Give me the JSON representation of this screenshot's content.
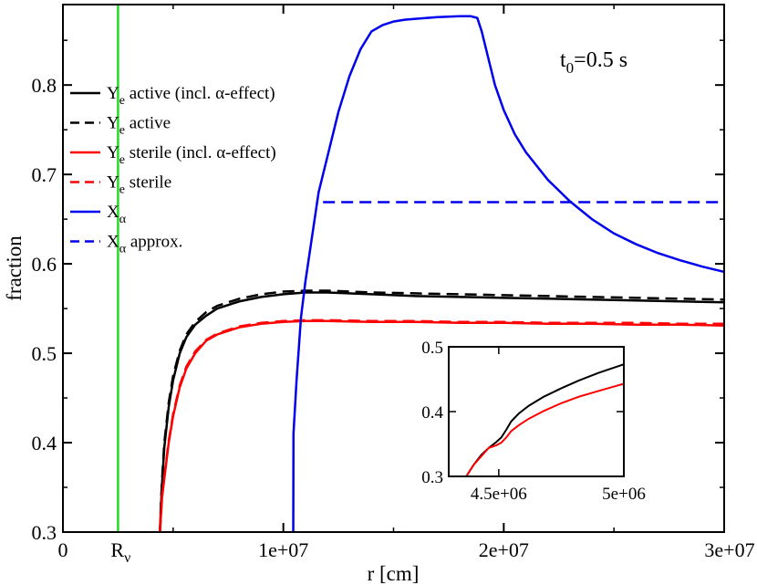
{
  "chart_data": {
    "type": "line",
    "xlabel": "r [cm]",
    "ylabel": "fraction",
    "xlim": [
      0,
      30000000
    ],
    "ylim": [
      0.3,
      0.89
    ],
    "x_ticks": [
      {
        "value": 0,
        "label": "0"
      },
      {
        "value": 10000000,
        "label": "1e+07"
      },
      {
        "value": 20000000,
        "label": "2e+07"
      },
      {
        "value": 30000000,
        "label": "3e+07"
      }
    ],
    "extra_x_tick": {
      "value": 2500000,
      "label_main": "R",
      "label_sub": "ν"
    },
    "y_ticks": [
      {
        "value": 0.3,
        "label": "0.3"
      },
      {
        "value": 0.4,
        "label": "0.4"
      },
      {
        "value": 0.5,
        "label": "0.5"
      },
      {
        "value": 0.6,
        "label": "0.6"
      },
      {
        "value": 0.7,
        "label": "0.7"
      },
      {
        "value": 0.8,
        "label": "0.8"
      }
    ],
    "annotation": {
      "main": "t",
      "sub": "0",
      "rest": "=0.5 s"
    },
    "vertical_marker": {
      "x": 2500000,
      "color": "#22dd22"
    },
    "series": [
      {
        "name": "active (incl. α-effect)",
        "symbol": "Y",
        "sub": "e",
        "color": "#000000",
        "dash": "solid",
        "x": [
          4400000,
          4450000,
          4500000,
          4600000,
          4800000,
          5000000,
          5300000,
          5600000,
          6000000,
          6500000,
          7000000,
          8000000,
          9000000,
          10000000,
          11000000,
          12000000,
          14000000,
          16000000,
          18000000,
          20000000,
          22000000,
          24000000,
          26000000,
          28000000,
          30000000
        ],
        "y": [
          0.3,
          0.33,
          0.355,
          0.395,
          0.44,
          0.47,
          0.5,
          0.518,
          0.532,
          0.542,
          0.55,
          0.558,
          0.563,
          0.566,
          0.568,
          0.568,
          0.566,
          0.564,
          0.563,
          0.562,
          0.561,
          0.56,
          0.559,
          0.558,
          0.557
        ]
      },
      {
        "name": "active",
        "symbol": "Y",
        "sub": "e",
        "color": "#000000",
        "dash": "dashed",
        "x": [
          4400000,
          4450000,
          4500000,
          4600000,
          4800000,
          5000000,
          5300000,
          5600000,
          6000000,
          6500000,
          7000000,
          8000000,
          9000000,
          10000000,
          11000000,
          12000000,
          14000000,
          16000000,
          18000000,
          20000000,
          22000000,
          24000000,
          26000000,
          28000000,
          30000000
        ],
        "y": [
          0.3,
          0.335,
          0.36,
          0.4,
          0.445,
          0.475,
          0.503,
          0.521,
          0.535,
          0.546,
          0.553,
          0.561,
          0.566,
          0.569,
          0.57,
          0.57,
          0.568,
          0.567,
          0.566,
          0.565,
          0.564,
          0.563,
          0.562,
          0.561,
          0.56
        ]
      },
      {
        "name": "sterile (incl. α-effect)",
        "symbol": "Y",
        "sub": "e",
        "color": "#ff0000",
        "dash": "solid",
        "x": [
          4400000,
          4500000,
          4600000,
          4800000,
          5000000,
          5300000,
          5600000,
          6000000,
          6500000,
          7000000,
          8000000,
          9000000,
          10000000,
          11000000,
          12000000,
          14000000,
          16000000,
          18000000,
          20000000,
          22000000,
          24000000,
          26000000,
          28000000,
          30000000
        ],
        "y": [
          0.3,
          0.34,
          0.36,
          0.4,
          0.43,
          0.462,
          0.483,
          0.5,
          0.514,
          0.521,
          0.529,
          0.533,
          0.535,
          0.536,
          0.536,
          0.535,
          0.535,
          0.534,
          0.534,
          0.533,
          0.533,
          0.532,
          0.532,
          0.531
        ]
      },
      {
        "name": "sterile",
        "symbol": "Y",
        "sub": "e",
        "color": "#ff0000",
        "dash": "dashed",
        "x": [
          4400000,
          4500000,
          4600000,
          4800000,
          5000000,
          5300000,
          5600000,
          6000000,
          6500000,
          7000000,
          8000000,
          9000000,
          10000000,
          11000000,
          12000000,
          14000000,
          16000000,
          18000000,
          20000000,
          22000000,
          24000000,
          26000000,
          28000000,
          30000000
        ],
        "y": [
          0.3,
          0.34,
          0.362,
          0.402,
          0.432,
          0.464,
          0.485,
          0.502,
          0.515,
          0.522,
          0.53,
          0.534,
          0.536,
          0.537,
          0.537,
          0.536,
          0.536,
          0.535,
          0.535,
          0.534,
          0.534,
          0.534,
          0.533,
          0.533
        ]
      },
      {
        "name": "",
        "symbol": "X",
        "sub": "α",
        "color": "#0000ee",
        "dash": "solid",
        "x": [
          10450000,
          10460000,
          10600000,
          10800000,
          11000000,
          11300000,
          11600000,
          12000000,
          12500000,
          13000000,
          13500000,
          14000000,
          14500000,
          15000000,
          15500000,
          16000000,
          17000000,
          18000000,
          18500000,
          18800000,
          19000000,
          19300000,
          19600000,
          20000000,
          20500000,
          21000000,
          22000000,
          23000000,
          24000000,
          25000000,
          26000000,
          27000000,
          28000000,
          29000000,
          30000000
        ],
        "y": [
          0.3,
          0.41,
          0.47,
          0.54,
          0.58,
          0.63,
          0.68,
          0.72,
          0.77,
          0.81,
          0.84,
          0.86,
          0.867,
          0.871,
          0.873,
          0.874,
          0.876,
          0.877,
          0.877,
          0.875,
          0.86,
          0.83,
          0.8,
          0.772,
          0.745,
          0.725,
          0.694,
          0.67,
          0.65,
          0.634,
          0.622,
          0.612,
          0.604,
          0.597,
          0.591
        ]
      },
      {
        "name": "approx.",
        "symbol": "X",
        "sub": "α",
        "color": "#0000ee",
        "dash": "dashed",
        "x": [
          11800000,
          30000000
        ],
        "y": [
          0.669,
          0.669
        ]
      }
    ],
    "inset": {
      "xlim": [
        4300000,
        5000000
      ],
      "ylim": [
        0.3,
        0.5
      ],
      "x_ticks": [
        {
          "value": 4500000,
          "label": "4.5e+06"
        },
        {
          "value": 5000000,
          "label": "5e+06"
        }
      ],
      "y_ticks": [
        {
          "value": 0.3,
          "label": "0.3"
        },
        {
          "value": 0.4,
          "label": "0.4"
        },
        {
          "value": 0.5,
          "label": "0.5"
        }
      ],
      "series": [
        {
          "color": "#000000",
          "x": [
            4370000,
            4400000,
            4430000,
            4460000,
            4490000,
            4510000,
            4530000,
            4550000,
            4580000,
            4620000,
            4680000,
            4750000,
            4820000,
            4900000,
            5000000
          ],
          "y": [
            0.3,
            0.318,
            0.333,
            0.344,
            0.353,
            0.36,
            0.372,
            0.385,
            0.397,
            0.409,
            0.423,
            0.436,
            0.448,
            0.46,
            0.473
          ]
        },
        {
          "color": "#ff0000",
          "x": [
            4370000,
            4400000,
            4430000,
            4460000,
            4490000,
            4510000,
            4530000,
            4550000,
            4580000,
            4620000,
            4680000,
            4750000,
            4820000,
            4900000,
            5000000
          ],
          "y": [
            0.3,
            0.318,
            0.331,
            0.344,
            0.348,
            0.352,
            0.36,
            0.37,
            0.379,
            0.389,
            0.401,
            0.413,
            0.423,
            0.432,
            0.443
          ]
        }
      ]
    }
  }
}
